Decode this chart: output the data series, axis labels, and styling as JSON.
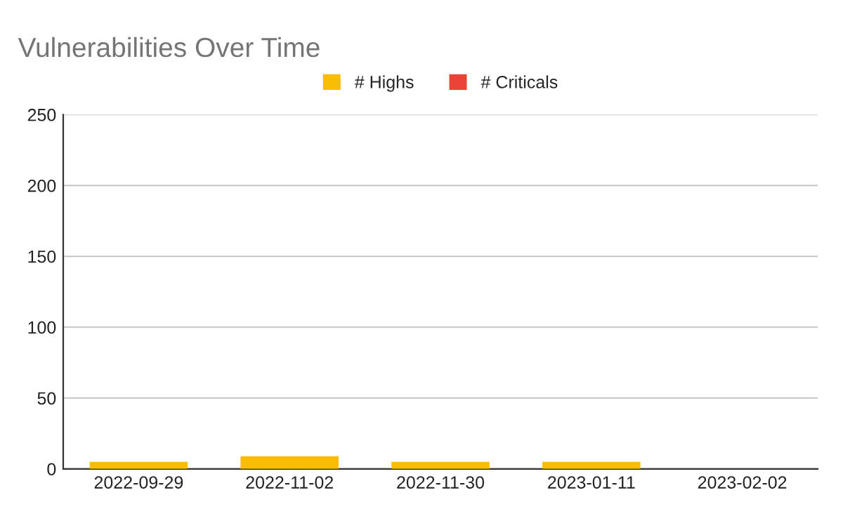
{
  "chart_data": {
    "type": "bar",
    "title": "Vulnerabilities Over Time",
    "stacked": true,
    "categories": [
      "2022-09-29",
      "2022-11-02",
      "2022-11-30",
      "2023-01-11",
      "2023-02-02"
    ],
    "series": [
      {
        "name": "# Highs",
        "color": "#fbbc04",
        "values": [
          5,
          9,
          5,
          5,
          0
        ]
      },
      {
        "name": "# Criticals",
        "color": "#ea4335",
        "values": [
          0,
          0,
          0,
          0,
          0
        ]
      }
    ],
    "ylim": [
      0,
      250
    ],
    "yticks": [
      0,
      50,
      100,
      150,
      200,
      250
    ],
    "grid": "y",
    "legend": "top"
  }
}
